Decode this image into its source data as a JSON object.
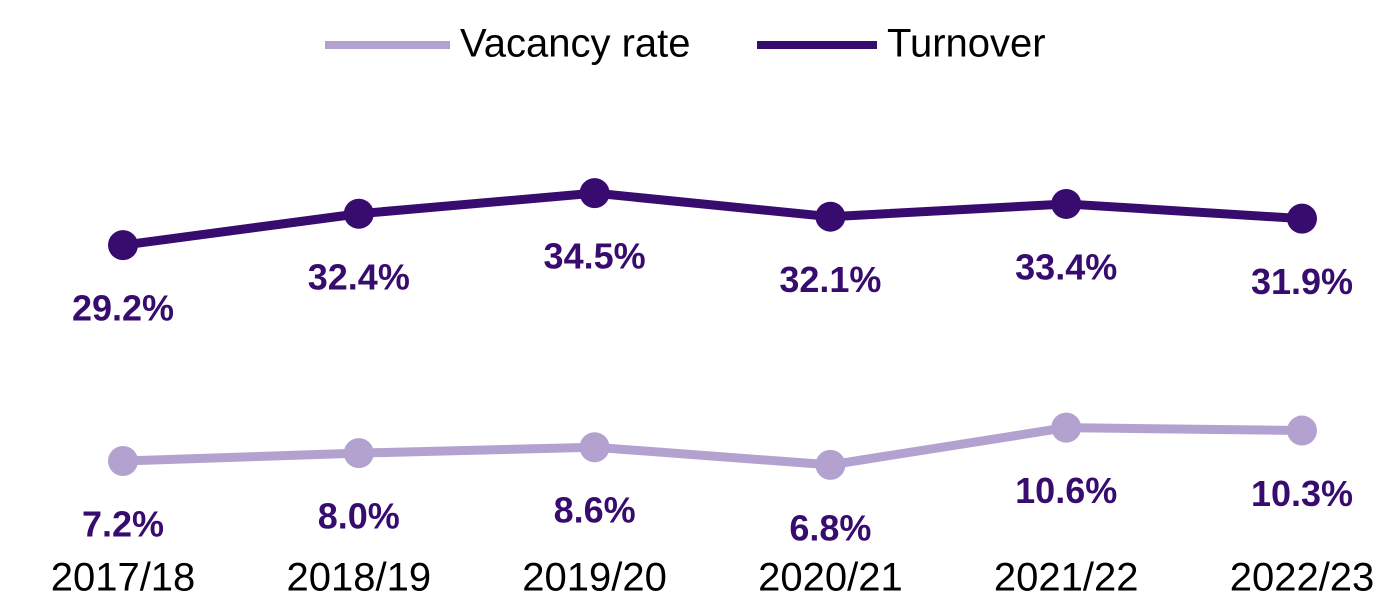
{
  "chart_data": {
    "type": "line",
    "categories": [
      "2017/18",
      "2018/19",
      "2019/20",
      "2020/21",
      "2021/22",
      "2022/23"
    ],
    "series": [
      {
        "name": "Vacancy rate",
        "color": "#b3a2cf",
        "values": [
          7.2,
          8.0,
          8.6,
          6.8,
          10.6,
          10.3
        ],
        "value_labels": [
          "7.2%",
          "8.0%",
          "8.6%",
          "6.8%",
          "10.6%",
          "10.3%"
        ]
      },
      {
        "name": "Turnover",
        "color": "#380b6e",
        "values": [
          29.2,
          32.4,
          34.5,
          32.1,
          33.4,
          31.9
        ],
        "value_labels": [
          "29.2%",
          "32.4%",
          "34.5%",
          "32.1%",
          "33.4%",
          "31.9%"
        ]
      }
    ],
    "ylim": [
      0,
      40
    ],
    "legend": "top"
  }
}
